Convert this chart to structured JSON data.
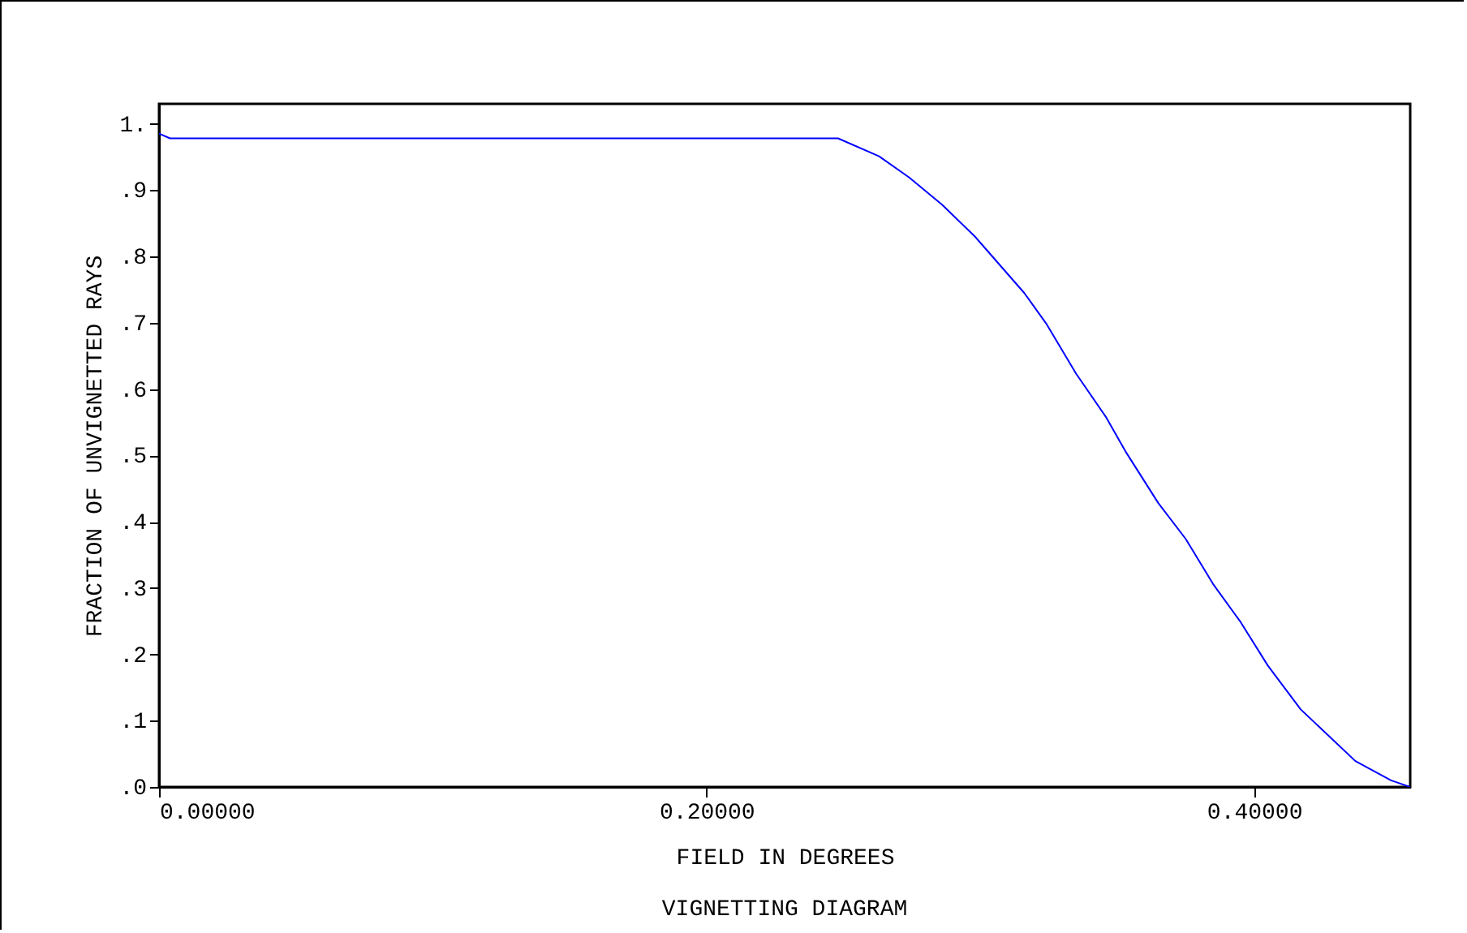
{
  "chart_data": {
    "type": "line",
    "title": "VIGNETTING DIAGRAM",
    "xlabel": "FIELD IN DEGREES",
    "ylabel": "FRACTION OF UNVIGNETTED RAYS",
    "x": [
      0,
      0.004,
      0.1,
      0.2,
      0.248,
      0.263,
      0.274,
      0.286,
      0.298,
      0.316,
      0.324,
      0.335,
      0.346,
      0.353,
      0.365,
      0.375,
      0.385,
      0.395,
      0.405,
      0.417,
      0.427,
      0.437,
      0.45,
      0.457
    ],
    "series": [
      {
        "color": "#0000ff",
        "values": [
          0.985,
          0.978,
          0.978,
          0.978,
          0.978,
          0.951,
          0.919,
          0.878,
          0.83,
          0.745,
          0.699,
          0.623,
          0.557,
          0.506,
          0.428,
          0.374,
          0.306,
          0.249,
          0.183,
          0.117,
          0.078,
          0.039,
          0.01,
          0.0
        ]
      }
    ],
    "xlim": [
      0,
      0.457
    ],
    "xticks": [
      {
        "value": 0,
        "label": "0.00000"
      },
      {
        "value": 0.2,
        "label": "0.20000"
      },
      {
        "value": 0.4,
        "label": "0.40000"
      }
    ],
    "ylim": [
      0,
      1.03
    ],
    "yticks": [
      {
        "value": 0,
        "label": ".0"
      },
      {
        "value": 0.1,
        "label": ".1"
      },
      {
        "value": 0.2,
        "label": ".2"
      },
      {
        "value": 0.3,
        "label": ".3"
      },
      {
        "value": 0.4,
        "label": ".4"
      },
      {
        "value": 0.5,
        "label": ".5"
      },
      {
        "value": 0.6,
        "label": ".6"
      },
      {
        "value": 0.7,
        "label": ".7"
      },
      {
        "value": 0.8,
        "label": ".8"
      },
      {
        "value": 0.9,
        "label": ".9"
      },
      {
        "value": 1,
        "label": "1."
      }
    ],
    "grid": false
  }
}
